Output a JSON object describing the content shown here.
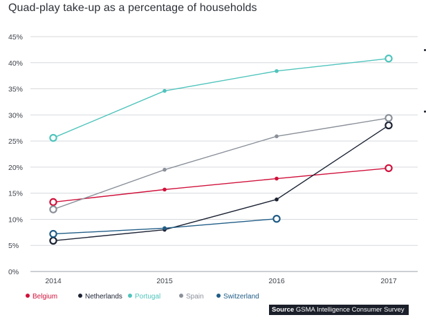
{
  "chart_data": {
    "type": "line",
    "title": "Quad-play take-up as a percentage of households",
    "x": [
      "2014",
      "2015",
      "2016",
      "2017"
    ],
    "y_ticks": [
      "0%",
      "5%",
      "10%",
      "15%",
      "20%",
      "25%",
      "30%",
      "35%",
      "40%",
      "45%"
    ],
    "ylim": [
      0,
      45
    ],
    "grid": true,
    "legend_position": "bottom-left",
    "series": [
      {
        "name": "Belgium",
        "color": "#d0103a",
        "values": [
          13.3,
          15.7,
          17.8,
          19.8
        ]
      },
      {
        "name": "Netherlands",
        "color": "#1b2233",
        "values": [
          5.9,
          8.0,
          13.8,
          28.0
        ]
      },
      {
        "name": "Portugal",
        "color": "#4fc4bc",
        "values": [
          25.6,
          34.6,
          38.4,
          40.8
        ]
      },
      {
        "name": "Spain",
        "color": "#8a9099",
        "values": [
          11.9,
          19.5,
          25.9,
          29.4
        ]
      },
      {
        "name": "Switzerland",
        "color": "#1f5c86",
        "values": [
          7.2,
          8.3,
          10.1,
          null
        ]
      }
    ]
  },
  "source": {
    "label": "Source",
    "text": "GSMA Intelligence Consumer Survey"
  }
}
